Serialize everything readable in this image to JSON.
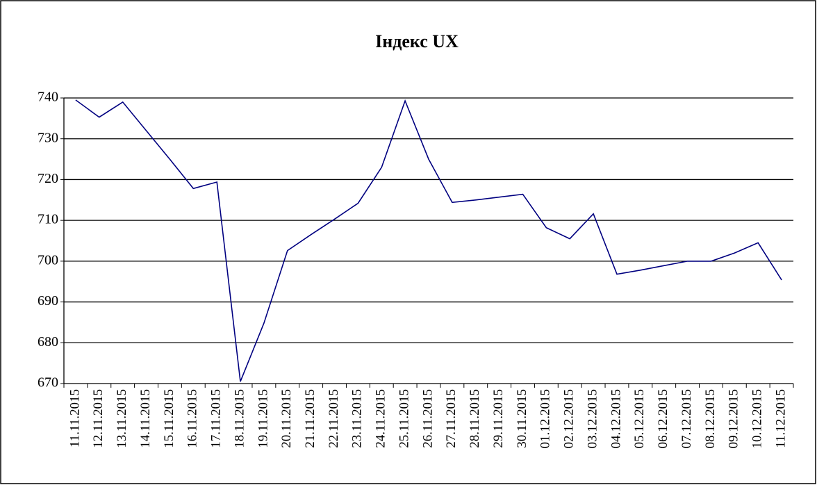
{
  "chart_data": {
    "type": "line",
    "title": "Індекс UX",
    "categories": [
      "11.11.2015",
      "12.11.2015",
      "13.11.2015",
      "14.11.2015",
      "15.11.2015",
      "16.11.2015",
      "17.11.2015",
      "18.11.2015",
      "19.11.2015",
      "20.11.2015",
      "21.11.2015",
      "22.11.2015",
      "23.11.2015",
      "24.11.2015",
      "25.11.2015",
      "26.11.2015",
      "27.11.2015",
      "28.11.2015",
      "29.11.2015",
      "30.11.2015",
      "01.12.2015",
      "02.12.2015",
      "03.12.2015",
      "04.12.2015",
      "05.12.2015",
      "06.12.2015",
      "07.12.2015",
      "08.12.2015",
      "09.12.2015",
      "10.12.2015",
      "11.12.2015"
    ],
    "values": [
      739.5,
      735.3,
      739,
      732,
      725,
      717.8,
      719.4,
      670.5,
      684.8,
      702.6,
      706.5,
      710.3,
      714.2,
      723,
      739.3,
      725,
      714.4,
      715,
      715.7,
      716.4,
      708.2,
      705.5,
      711.6,
      696.8,
      697.8,
      698.9,
      700,
      700,
      702,
      704.5,
      695.4
    ],
    "color": "#000080",
    "ylim": [
      670,
      740
    ],
    "yticks": [
      670,
      680,
      690,
      700,
      710,
      720,
      730,
      740
    ],
    "grid": true
  }
}
